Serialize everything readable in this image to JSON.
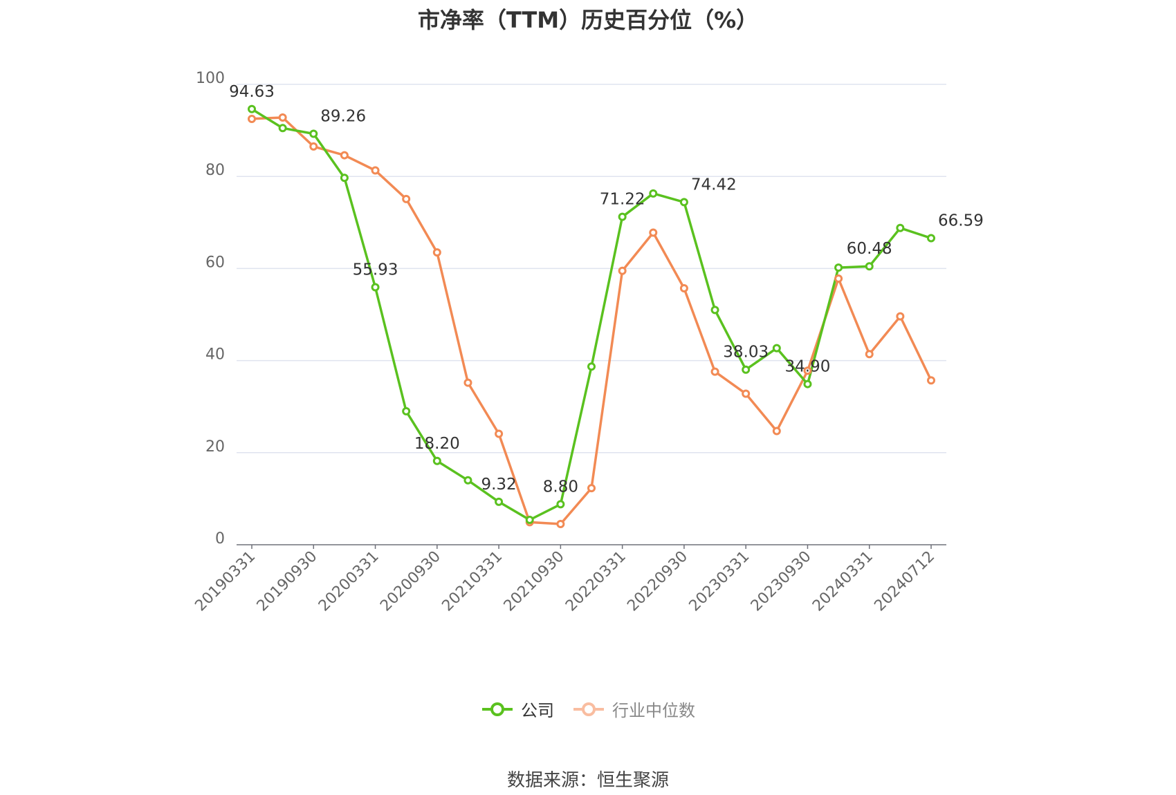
{
  "chart_data": {
    "type": "line",
    "title": "市净率（TTM）历史百分位（%）",
    "ylim": [
      0,
      100
    ],
    "yticks": [
      0,
      20,
      40,
      60,
      80,
      100
    ],
    "grid": true,
    "legend_position": "bottom",
    "x": [
      "20190331",
      "20190630",
      "20190930",
      "20191231",
      "20200331",
      "20200630",
      "20200930",
      "20201231",
      "20210331",
      "20210630",
      "20210930",
      "20211231",
      "20220331",
      "20220630",
      "20220930",
      "20221231",
      "20230331",
      "20230630",
      "20230930",
      "20231231",
      "20240331",
      "20240630",
      "20240712"
    ],
    "xtick_labels": [
      "20190331",
      "20190930",
      "20200331",
      "20200930",
      "20210331",
      "20210930",
      "20220331",
      "20220930",
      "20230331",
      "20230930",
      "20240331",
      "20240712"
    ],
    "series": [
      {
        "name": "公司",
        "color": "#5ac11f",
        "values": [
          94.63,
          90.5,
          89.26,
          79.7,
          55.93,
          29.0,
          18.2,
          14.0,
          9.32,
          5.4,
          8.8,
          38.7,
          71.22,
          76.3,
          74.42,
          51.0,
          38.03,
          42.7,
          34.9,
          60.2,
          60.48,
          68.8,
          66.59
        ],
        "labels": {
          "0": "94.63",
          "2": "89.26",
          "4": "55.93",
          "6": "18.20",
          "8": "9.32",
          "10": "8.80",
          "12": "71.22",
          "14": "74.42",
          "16": "38.03",
          "18": "34.90",
          "20": "60.48",
          "22": "66.59"
        }
      },
      {
        "name": "行业中位数",
        "color": "#f28a54",
        "values": [
          92.5,
          92.8,
          86.5,
          84.6,
          81.3,
          75.1,
          63.5,
          35.2,
          24.1,
          4.9,
          4.5,
          12.3,
          59.5,
          67.8,
          55.7,
          37.6,
          32.8,
          24.7,
          37.8,
          57.8,
          41.4,
          49.6,
          35.7
        ]
      }
    ]
  },
  "footer": {
    "source": "数据来源：恒生聚源"
  }
}
